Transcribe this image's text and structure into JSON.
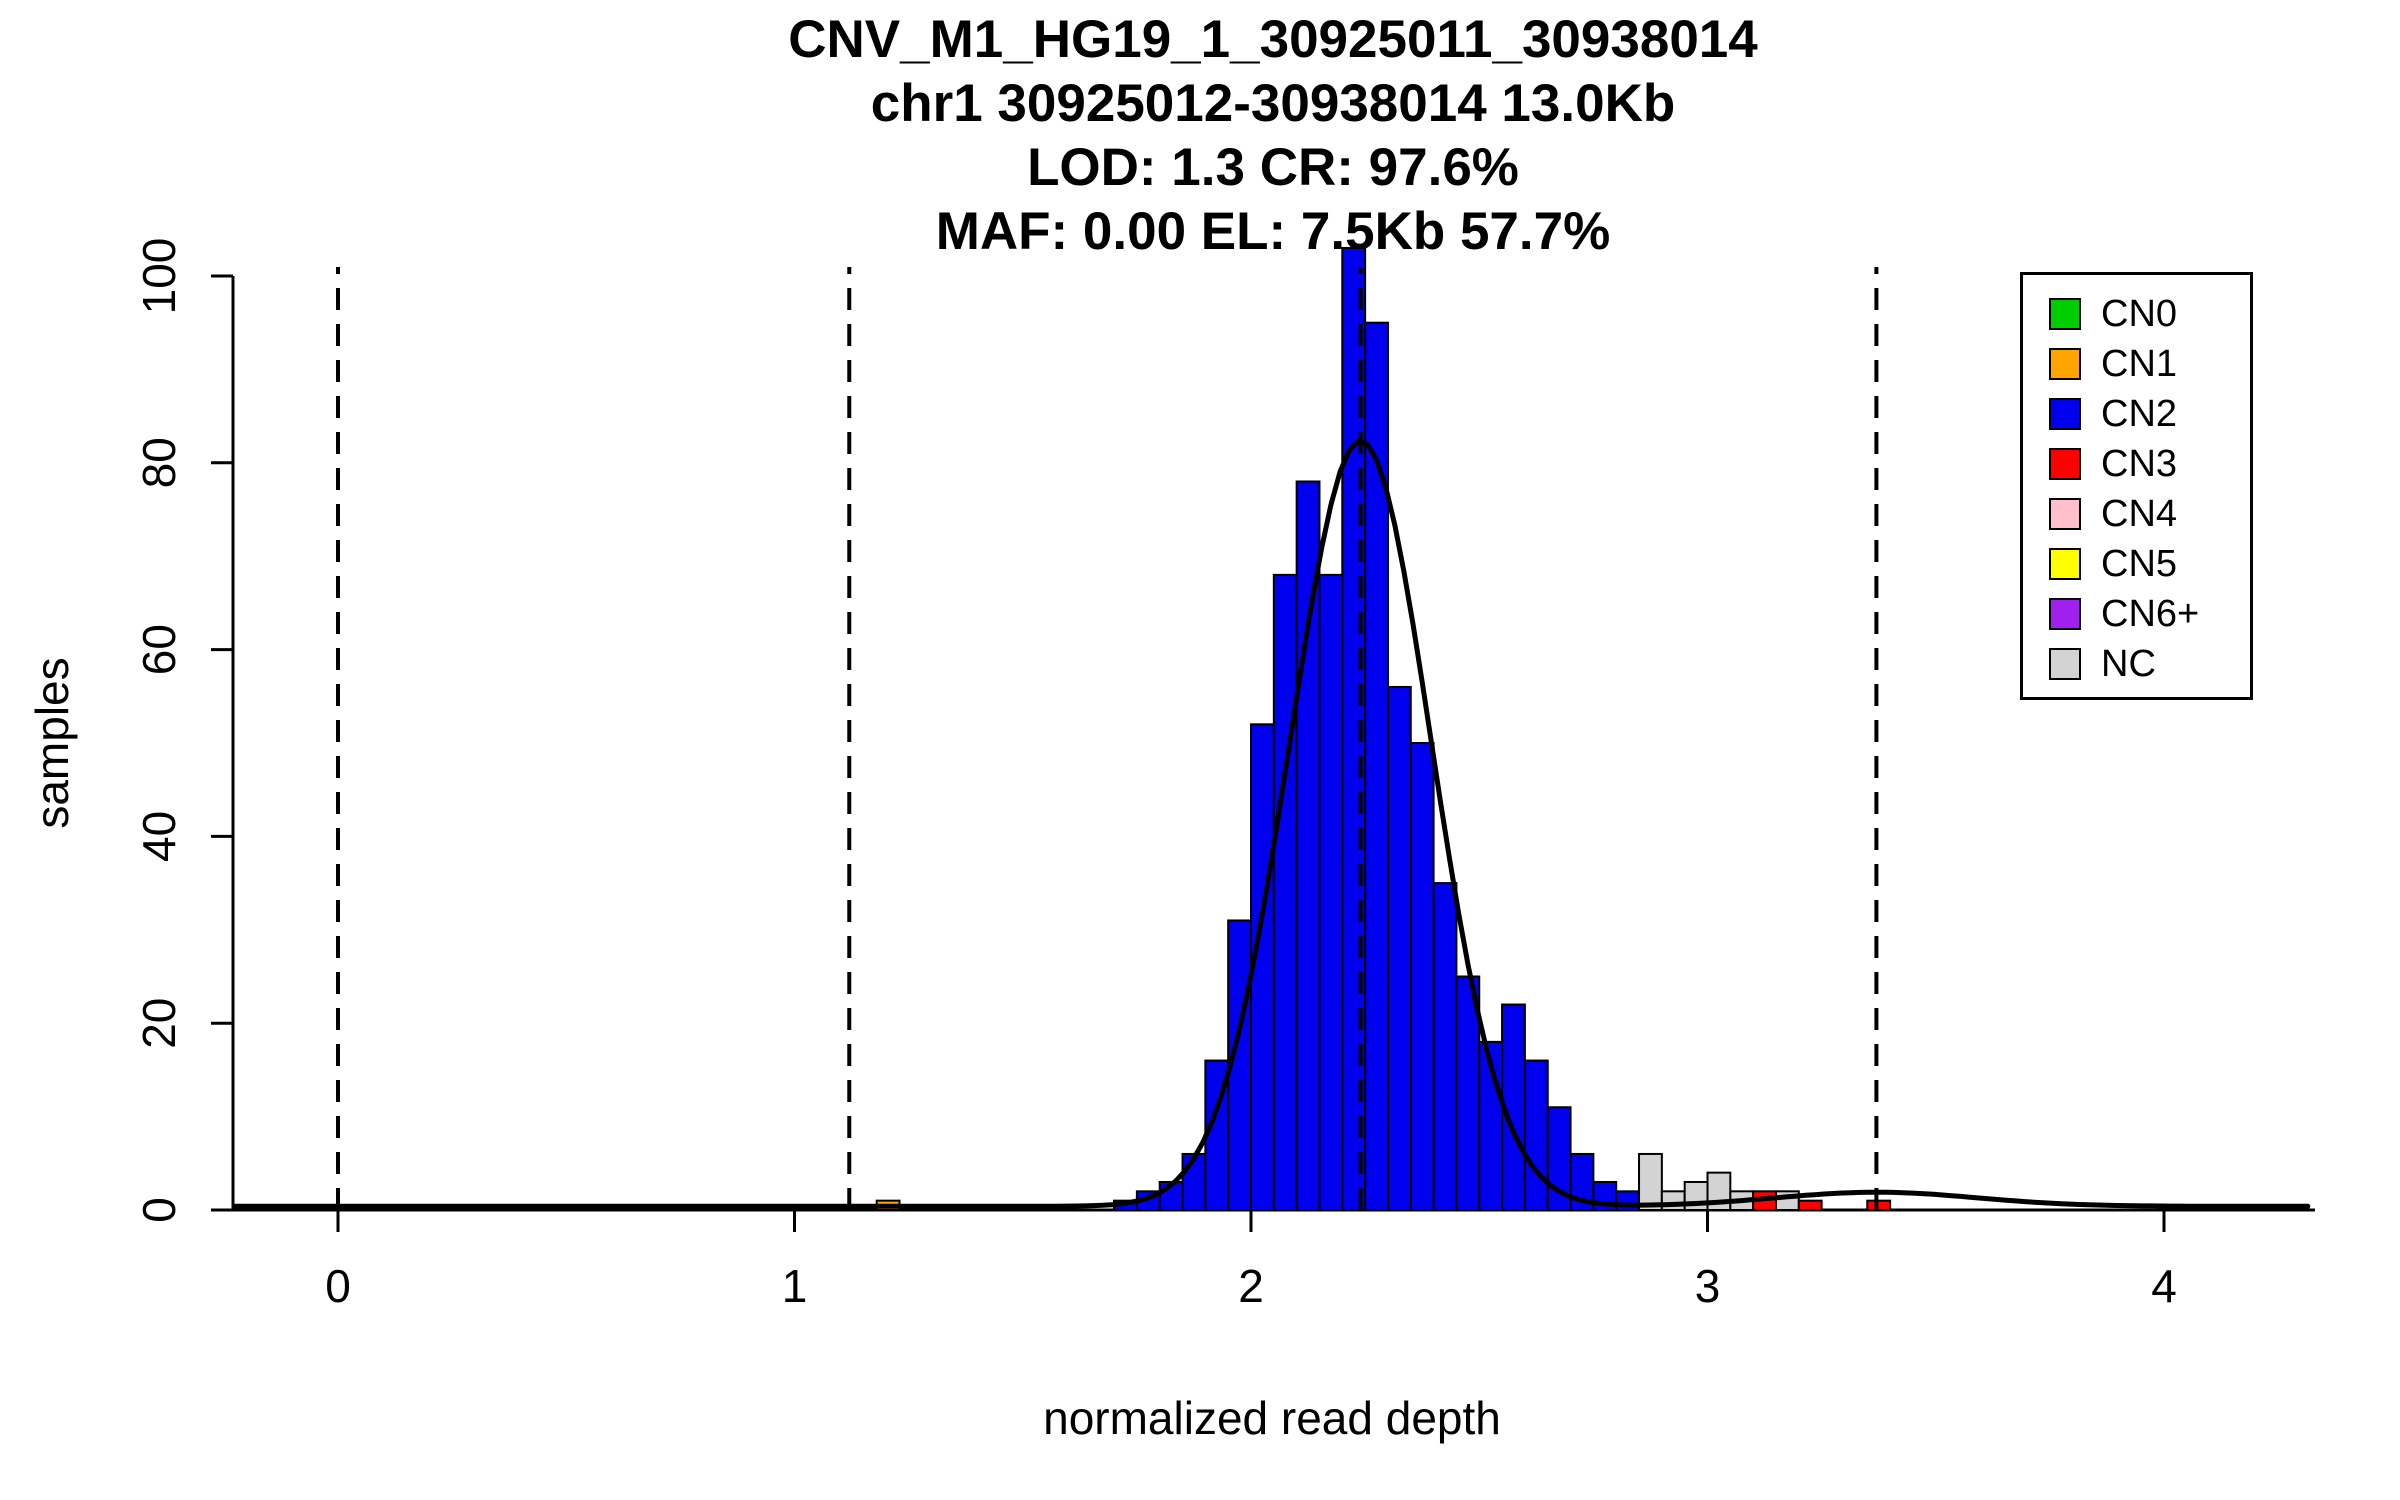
{
  "page": {
    "background": "#FFFFFF"
  },
  "title": {
    "line1": "CNV_M1_HG19_1_30925011_30938014",
    "line2": "chr1 30925012-30938014 13.0Kb",
    "line3": "LOD: 1.3 CR: 97.6%",
    "line4": "MAF: 0.00 EL: 7.5Kb 57.7%"
  },
  "chart_data": {
    "type": "bar",
    "subtype": "histogram",
    "title": "CNV_M1_HG19_1_30925011_30938014",
    "subtitle_lines": [
      "chr1 30925012-30938014 13.0Kb",
      "LOD: 1.3 CR: 97.6%",
      "MAF: 0.00 EL: 7.5Kb 57.7%"
    ],
    "xlabel": "normalized read depth",
    "ylabel": "samples",
    "xlim": [
      -0.23,
      4.33
    ],
    "ylim": [
      0,
      103
    ],
    "x_ticks": [
      0,
      1,
      2,
      3,
      4
    ],
    "y_ticks": [
      0,
      20,
      40,
      60,
      80,
      100
    ],
    "grid": false,
    "legend_position": "top-right",
    "bin_width": 0.05,
    "dashed_vlines_x": [
      0,
      1.12,
      2.24,
      3.37
    ],
    "curve": {
      "type": "gaussian-sum",
      "color": "#000000",
      "baseline": 0.4,
      "components": [
        {
          "mean": 2.24,
          "sd": 0.155,
          "amp": 82
        },
        {
          "mean": 3.37,
          "sd": 0.22,
          "amp": 1.5
        }
      ]
    },
    "cn_colors": {
      "CN0": "#00CD00",
      "CN1": "#FFA500",
      "CN2": "#0000EE",
      "CN3": "#FF0000",
      "CN4": "#FFC0CB",
      "CN5": "#FFFF00",
      "CN6+": "#A020F0",
      "NC": "#D3D3D3"
    },
    "legend": [
      "CN0",
      "CN1",
      "CN2",
      "CN3",
      "CN4",
      "CN5",
      "CN6+",
      "NC"
    ],
    "bars": [
      [
        1.18,
        1,
        "CN1"
      ],
      [
        1.7,
        1,
        "CN2"
      ],
      [
        1.75,
        2,
        "CN2"
      ],
      [
        1.8,
        3,
        "CN2"
      ],
      [
        1.85,
        6,
        "CN2"
      ],
      [
        1.9,
        16,
        "CN2"
      ],
      [
        1.95,
        31,
        "CN2"
      ],
      [
        2.0,
        52,
        "CN2"
      ],
      [
        2.05,
        68,
        "CN2"
      ],
      [
        2.1,
        78,
        "CN2"
      ],
      [
        2.15,
        68,
        "CN2"
      ],
      [
        2.2,
        103,
        "CN2"
      ],
      [
        2.25,
        95,
        "CN2"
      ],
      [
        2.3,
        56,
        "CN2"
      ],
      [
        2.35,
        50,
        "CN2"
      ],
      [
        2.4,
        35,
        "CN2"
      ],
      [
        2.45,
        25,
        "CN2"
      ],
      [
        2.5,
        18,
        "CN2"
      ],
      [
        2.55,
        22,
        "CN2"
      ],
      [
        2.6,
        16,
        "CN2"
      ],
      [
        2.65,
        11,
        "CN2"
      ],
      [
        2.7,
        6,
        "CN2"
      ],
      [
        2.75,
        3,
        "CN2"
      ],
      [
        2.8,
        2,
        "CN2"
      ],
      [
        2.85,
        6,
        "NC"
      ],
      [
        2.9,
        2,
        "NC"
      ],
      [
        2.95,
        3,
        "NC"
      ],
      [
        3.0,
        4,
        "NC"
      ],
      [
        3.05,
        2,
        "NC"
      ],
      [
        3.1,
        2,
        "CN3"
      ],
      [
        3.15,
        2,
        "NC"
      ],
      [
        3.2,
        1,
        "CN3"
      ],
      [
        3.35,
        1,
        "CN3"
      ]
    ]
  }
}
